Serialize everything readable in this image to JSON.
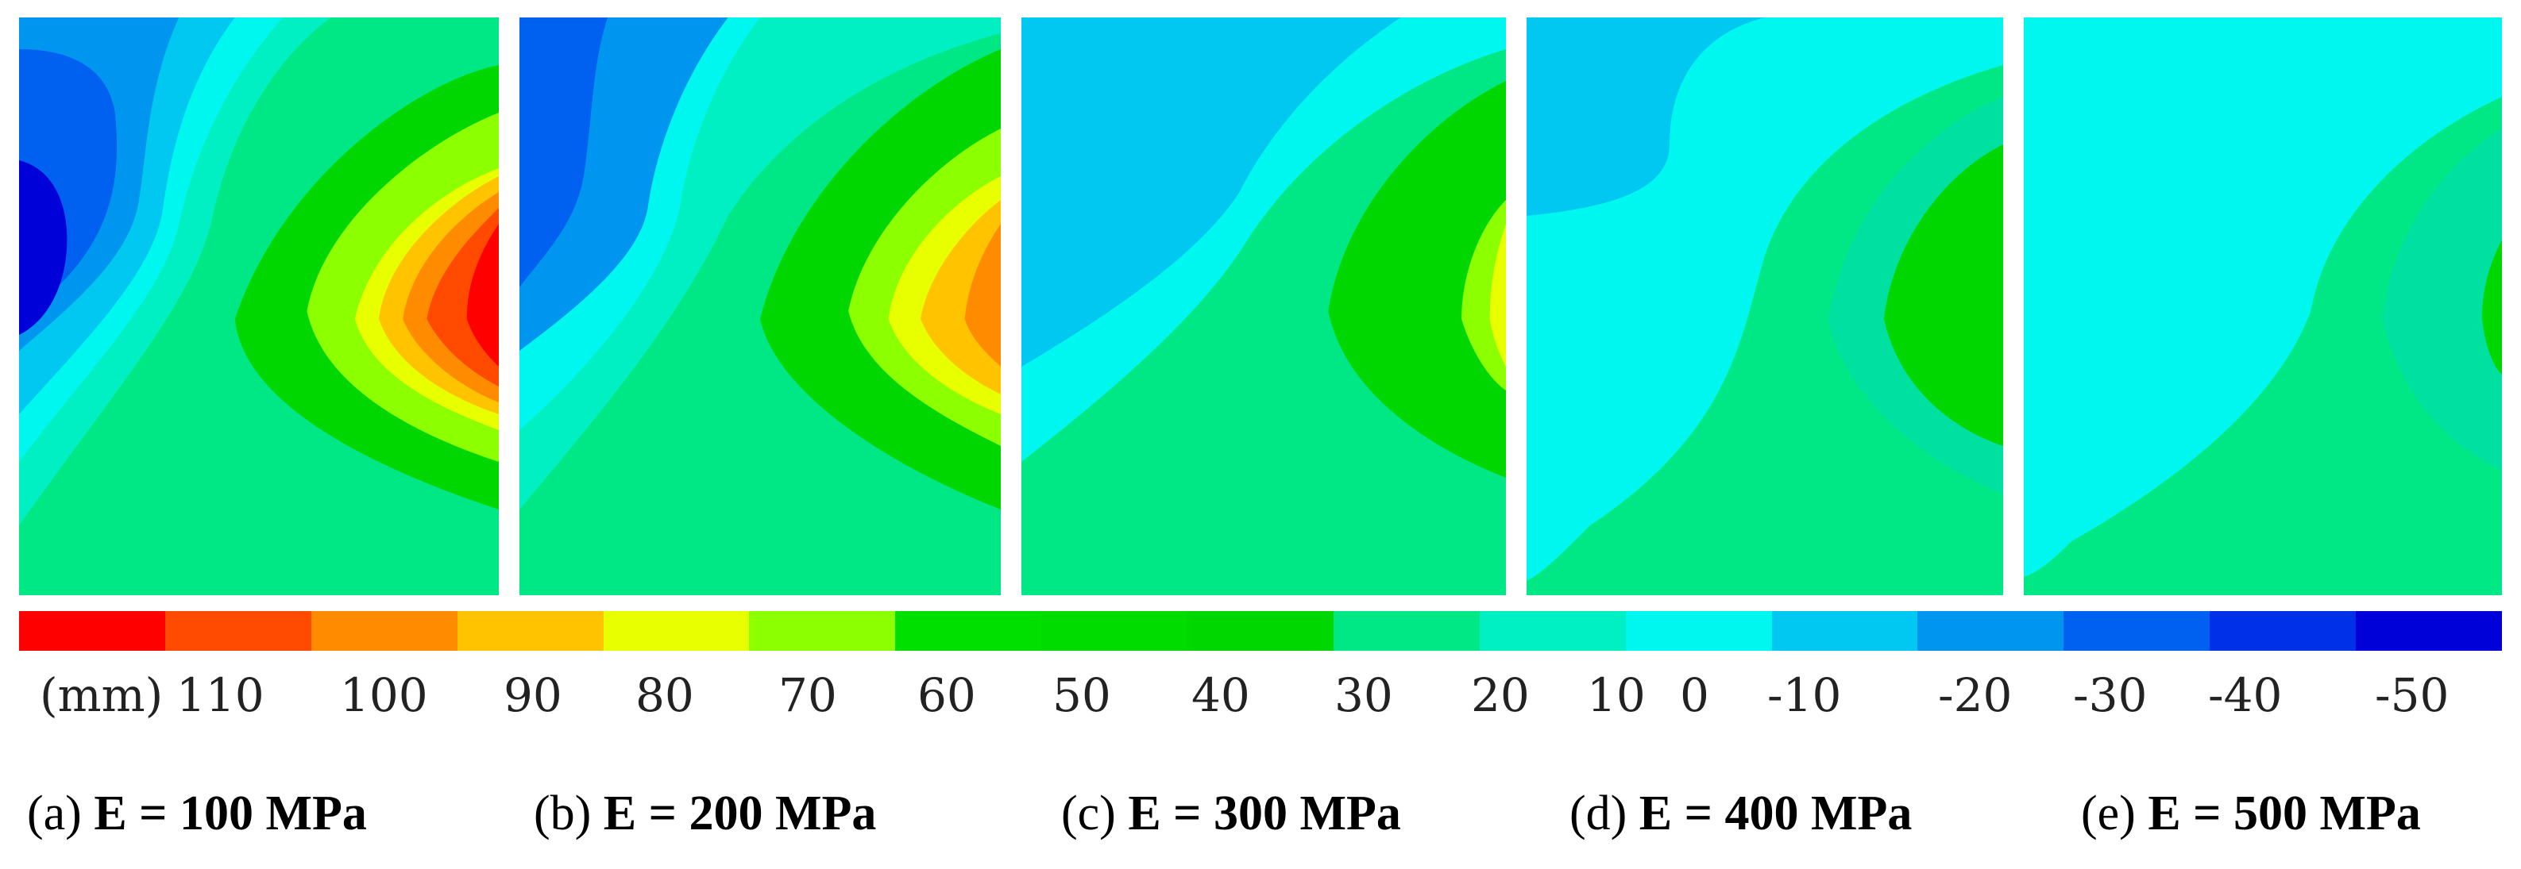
{
  "figure": {
    "colorbar": {
      "unit_label": "(mm)",
      "ticks": [
        "110",
        "100",
        "90",
        "80",
        "70",
        "60",
        "50",
        "40",
        "30",
        "20",
        "10",
        "0",
        "-10",
        "-20",
        "-30",
        "-40",
        "-50"
      ],
      "colors": [
        "#ff0000",
        "#ff4a00",
        "#ff8c00",
        "#ffc300",
        "#e8ff00",
        "#8cff00",
        "#00e000",
        "#00dc00",
        "#00d600",
        "#00e886",
        "#00f0c4",
        "#00f7f0",
        "#00c8f0",
        "#0096f0",
        "#0060f0",
        "#0030e8",
        "#0000d8"
      ]
    },
    "panels": [
      {
        "tag": "(a)",
        "label": "E = 100 MPa",
        "modulus_mpa": 100
      },
      {
        "tag": "(b)",
        "label": "E = 200 MPa",
        "modulus_mpa": 200
      },
      {
        "tag": "(c)",
        "label": "E = 300 MPa",
        "modulus_mpa": 300
      },
      {
        "tag": "(d)",
        "label": "E = 400 MPa",
        "modulus_mpa": 400
      },
      {
        "tag": "(e)",
        "label": "E = 500 MPa",
        "modulus_mpa": 500
      }
    ]
  }
}
